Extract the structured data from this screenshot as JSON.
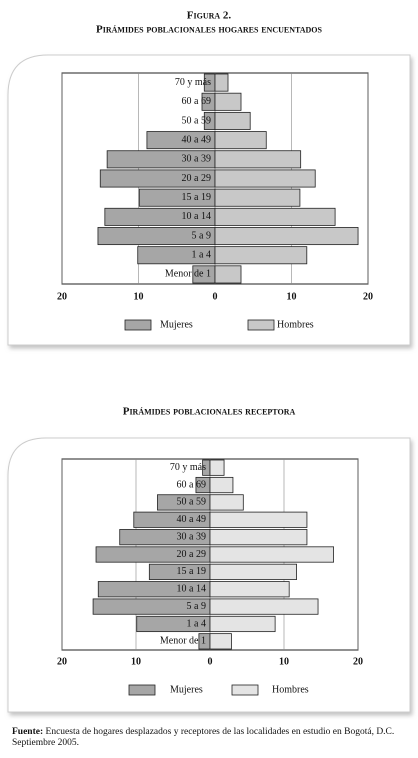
{
  "figure_label": "Figura 2.",
  "chart_data": [
    {
      "type": "pyramid",
      "title": "Pirámides poblacionales hogares encuentados",
      "categories": [
        "70 y más",
        "60 a 69",
        "50 a 59",
        "40 a 49",
        "30 a 39",
        "20 a 29",
        "15 a 19",
        "10 a 14",
        "5 a 9",
        "1 a 4",
        "Menor de 1"
      ],
      "series": [
        {
          "name": "Mujeres",
          "color": "#a6a6a6",
          "values": [
            -1.4,
            -1.7,
            -1.4,
            -8.9,
            -14.1,
            -15.0,
            -9.9,
            -14.4,
            -15.3,
            -10.1,
            -2.9
          ]
        },
        {
          "name": "Hombres",
          "color": "#c8c8c8",
          "values": [
            1.7,
            3.4,
            4.6,
            6.7,
            11.2,
            13.1,
            11.1,
            15.7,
            18.7,
            12.0,
            3.4
          ]
        }
      ],
      "xlim": [
        -20,
        20
      ],
      "xticks": [
        {
          "value": -20,
          "label": "20"
        },
        {
          "value": -10,
          "label": "10"
        },
        0,
        10,
        20
      ],
      "grid": true
    },
    {
      "type": "pyramid",
      "title": "Pirámides poblacionales receptora",
      "categories": [
        "70 y más",
        "60 a 69",
        "50 a 59",
        "40 a 49",
        "30 a 39",
        "20 a 29",
        "15 a 19",
        "10 a 14",
        "5 a 9",
        "1 a 4",
        "Menor de 1"
      ],
      "series": [
        {
          "name": "Mujeres",
          "color": "#a6a6a6",
          "values": [
            -1.0,
            -1.9,
            -7.1,
            -10.3,
            -12.2,
            -15.4,
            -8.2,
            -15.1,
            -15.8,
            -9.9,
            -1.5
          ]
        },
        {
          "name": "Hombres",
          "color": "#e4e4e4",
          "values": [
            1.9,
            3.1,
            4.5,
            13.1,
            13.1,
            16.7,
            11.7,
            10.7,
            14.6,
            8.8,
            2.9
          ]
        }
      ],
      "xlim": [
        -20,
        20
      ],
      "xticks": [
        {
          "value": -20,
          "label": "20"
        },
        {
          "value": -10,
          "label": "10"
        },
        0,
        10,
        20
      ],
      "grid": true
    }
  ],
  "source": {
    "label": "Fuente:",
    "text": "Encuesta de hogares desplazados y receptores de las localidades en estudio en Bogotá, D.C. Septiembre 2005."
  }
}
